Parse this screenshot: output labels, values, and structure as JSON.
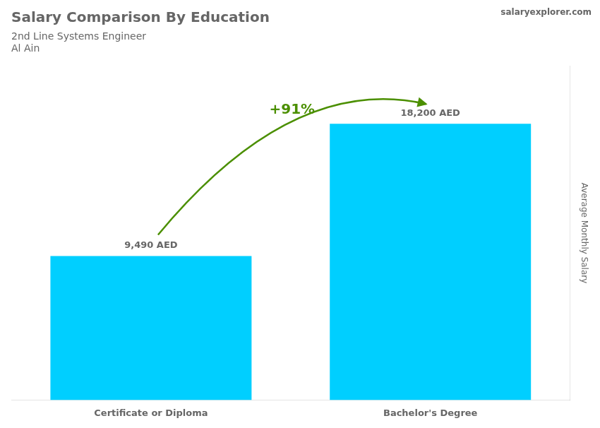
{
  "chart_data": {
    "type": "bar",
    "title": "Salary Comparison By Education",
    "subtitle": [
      "2nd Line Systems Engineer",
      "Al Ain"
    ],
    "categories": [
      "Certificate or Diploma",
      "Bachelor's Degree"
    ],
    "values": [
      9490,
      18200
    ],
    "value_labels": [
      "9,490 AED",
      "18,200 AED"
    ],
    "data_labels": true,
    "color": "#00CFFF",
    "ylabel": "Average Monthly Salary",
    "ylim": [
      0,
      22000
    ],
    "grid": false,
    "tick_labels": "x",
    "annotations": [
      "+91%",
      "salaryexplorer.com"
    ]
  }
}
